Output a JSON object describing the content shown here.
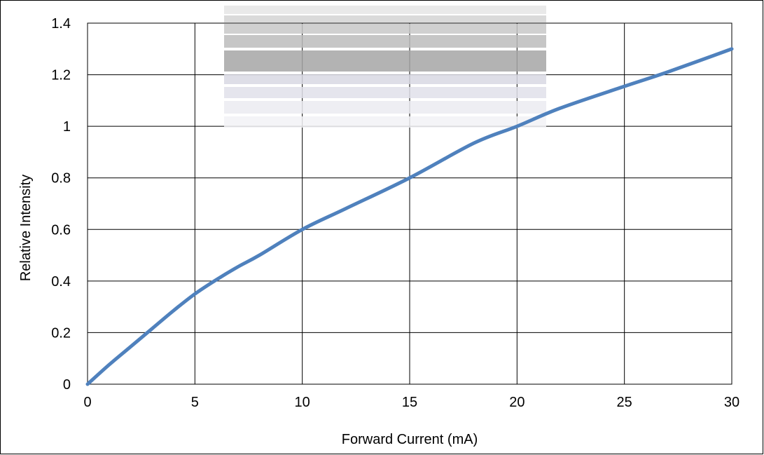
{
  "chart_data": {
    "type": "line",
    "xlabel": "Forward Current (mA)",
    "ylabel": "Relative Intensity",
    "xlim": [
      0,
      30
    ],
    "ylim": [
      0,
      1.4
    ],
    "x_ticks": [
      "0",
      "5",
      "10",
      "15",
      "20",
      "25",
      "30"
    ],
    "y_ticks": [
      "0",
      "0.2",
      "0.4",
      "0.6",
      "0.8",
      "1",
      "1.2",
      "1.4"
    ],
    "grid": true,
    "legend": "none",
    "series": [
      {
        "color": "#4f81bd",
        "x": [
          0,
          1,
          2,
          3,
          4,
          5,
          6,
          7,
          8,
          10,
          12,
          15,
          18,
          20,
          22,
          25,
          27,
          30
        ],
        "y": [
          0,
          0.075,
          0.145,
          0.215,
          0.285,
          0.35,
          0.405,
          0.455,
          0.5,
          0.6,
          0.68,
          0.8,
          0.935,
          1.0,
          1.07,
          1.155,
          1.21,
          1.3
        ]
      }
    ]
  }
}
